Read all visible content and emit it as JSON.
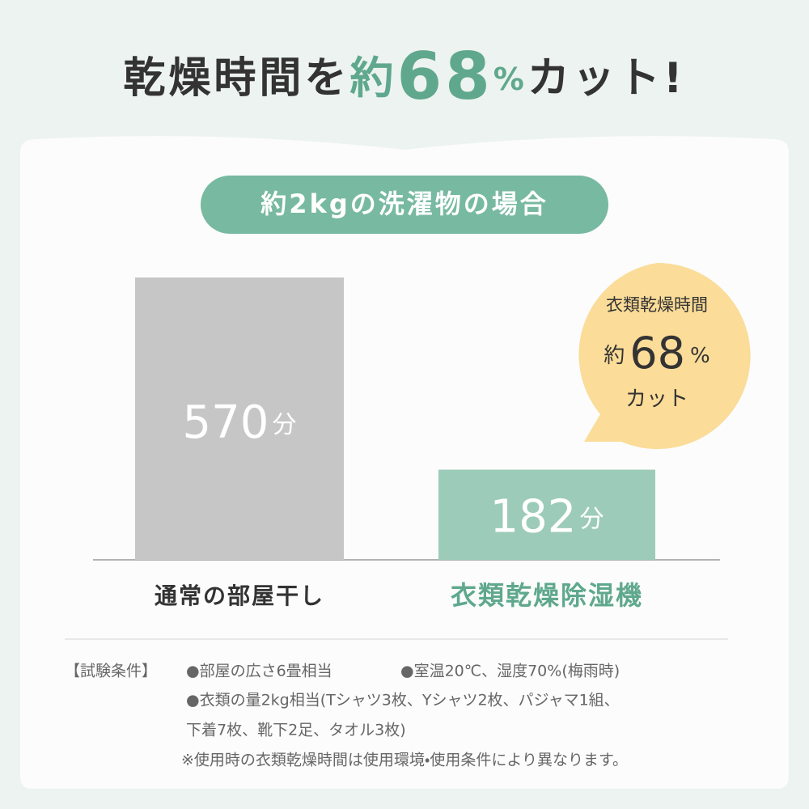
{
  "chart_data": {
    "type": "bar",
    "title_parts": [
      "乾燥時間を",
      "約",
      "68",
      "%",
      "カット!"
    ],
    "subtitle": "約2kgの洗濯物の場合",
    "categories": [
      "通常の部屋干し",
      "衣類乾燥除湿機"
    ],
    "values": [
      570,
      182
    ],
    "value_labels": [
      "570分",
      "182分"
    ],
    "colors": [
      "#c6c6c6",
      "#9ccbb9"
    ],
    "category_colors": [
      "#333333",
      "#5fa88e"
    ],
    "annotation": {
      "heading": "衣類乾燥時間",
      "prefix": "約",
      "figure": "68",
      "unit": "%",
      "suffix": "カット",
      "color": "#fbdc98"
    },
    "notes": {
      "label": "【試験条件】",
      "lines": [
        "●部屋の広さ6畳相当",
        "●室温20℃、湿度70%(梅雨時)",
        "●衣類の量2kg相当(Tシャツ3枚、Yシャツ2枚、パジャマ1組、",
        "下着7枚、靴下2足、タオル3枚)"
      ],
      "footnote": "※使用時の衣類乾燥時間は使用環境・使用条件により異なります。"
    }
  }
}
